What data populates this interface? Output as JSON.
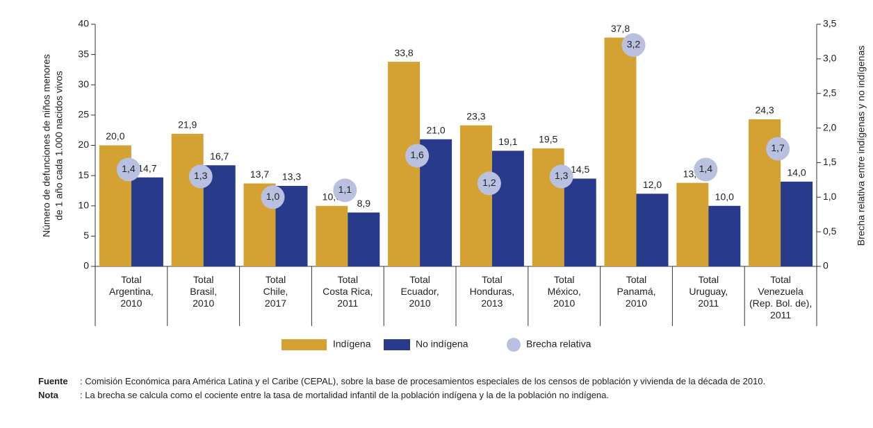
{
  "chart_data": {
    "type": "bar",
    "categories": [
      [
        "Total",
        "Argentina,",
        "2010"
      ],
      [
        "Total",
        "Brasil,",
        "2010"
      ],
      [
        "Total",
        "Chile,",
        "2017"
      ],
      [
        "Total",
        "Costa Rica,",
        "2011"
      ],
      [
        "Total",
        "Ecuador,",
        "2010"
      ],
      [
        "Total",
        "Honduras,",
        "2013"
      ],
      [
        "Total",
        "México,",
        "2010"
      ],
      [
        "Total",
        "Panamá,",
        "2010"
      ],
      [
        "Total",
        "Uruguay,",
        "2011"
      ],
      [
        "Total",
        "Venezuela",
        "(Rep. Bol. de),",
        "2011"
      ]
    ],
    "series": [
      {
        "name": "Indígena",
        "color": "#d4a233",
        "values": [
          20.0,
          21.9,
          13.7,
          10.0,
          33.8,
          23.3,
          19.5,
          37.8,
          13.8,
          24.3
        ],
        "value_labels": [
          "20,0",
          "21,9",
          "13,7",
          "10,0",
          "33,8",
          "23,3",
          "19,5",
          "37,8",
          "13,8",
          "24,3"
        ]
      },
      {
        "name": "No indígena",
        "color": "#283a8a",
        "values": [
          14.7,
          16.7,
          13.3,
          8.9,
          21.0,
          19.1,
          14.5,
          12.0,
          10.0,
          14.0
        ],
        "value_labels": [
          "14,7",
          "16,7",
          "13,3",
          "8,9",
          "21,0",
          "19,1",
          "14,5",
          "12,0",
          "10,0",
          "14,0"
        ]
      },
      {
        "name": "Brecha relativa",
        "color": "#b9c0e0",
        "axis": "y2",
        "type": "scatter",
        "values": [
          1.4,
          1.3,
          1.0,
          1.1,
          1.6,
          1.2,
          1.3,
          3.2,
          1.4,
          1.7
        ],
        "value_labels": [
          "1,4",
          "1,3",
          "1,0",
          "1,1",
          "1,6",
          "1,2",
          "1,3",
          "3,2",
          "1,4",
          "1,7"
        ]
      }
    ],
    "ylabel": [
      "Número de defunciones de niños menores",
      "de 1 año cada 1.000 nacidos vivos"
    ],
    "y2label": "Brecha relativa entre indígenas y no indígenas",
    "ylim": [
      0,
      40
    ],
    "yticks": [
      0,
      5,
      10,
      15,
      20,
      25,
      30,
      35,
      40
    ],
    "y2lim": [
      0,
      3.5
    ],
    "y2ticks": [
      0,
      {
        "value": 0.5,
        "label": "0,5"
      },
      {
        "value": 1.0,
        "label": "1,0"
      },
      {
        "value": 1.5,
        "label": "1,5"
      },
      {
        "value": 2.0,
        "label": "2,0"
      },
      {
        "value": 2.5,
        "label": "2,5"
      },
      {
        "value": 3.0,
        "label": "3,0"
      },
      {
        "value": 3.5,
        "label": "3,5"
      }
    ],
    "legend": "bottom"
  },
  "notes": [
    {
      "key": "Fuente",
      "text": ": Comisión Económica para América Latina y el Caribe (CEPAL), sobre la base de procesamientos especiales de los censos de población y vivienda de la década de 2010."
    },
    {
      "key": "Nota",
      "text": ":   La brecha se calcula como el cociente entre la tasa de mortalidad infantil de la población indígena y la de la población no indígena."
    }
  ]
}
